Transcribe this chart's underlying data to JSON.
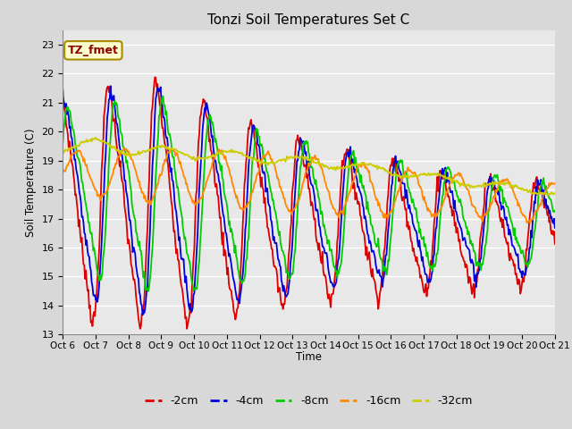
{
  "title": "Tonzi Soil Temperatures Set C",
  "ylabel": "Soil Temperature (C)",
  "xlabel": "Time",
  "annotation": "TZ_fmet",
  "ylim": [
    13.0,
    23.5
  ],
  "yticks": [
    13.0,
    14.0,
    15.0,
    16.0,
    17.0,
    18.0,
    19.0,
    20.0,
    21.0,
    22.0,
    23.0
  ],
  "series_colors": [
    "#dd0000",
    "#0000dd",
    "#00cc00",
    "#ff8800",
    "#cccc00"
  ],
  "series_labels": [
    "-2cm",
    "-4cm",
    "-8cm",
    "-16cm",
    "-32cm"
  ],
  "fig_bg_color": "#d8d8d8",
  "plot_bg_color": "#e8e8e8",
  "n_points": 600,
  "x_start": 6.0,
  "x_end": 21.0,
  "xtick_labels": [
    "Oct 6",
    "Oct 7",
    "Oct 8",
    "Oct 9",
    "Oct 10",
    "Oct 11",
    "Oct 12",
    "Oct 13",
    "Oct 14",
    "Oct 15",
    "Oct 16",
    "Oct 17",
    "Oct 18",
    "Oct 19",
    "Oct 20",
    "Oct 21"
  ],
  "xtick_positions": [
    6,
    7,
    8,
    9,
    10,
    11,
    12,
    13,
    14,
    15,
    16,
    17,
    18,
    19,
    20,
    21
  ]
}
